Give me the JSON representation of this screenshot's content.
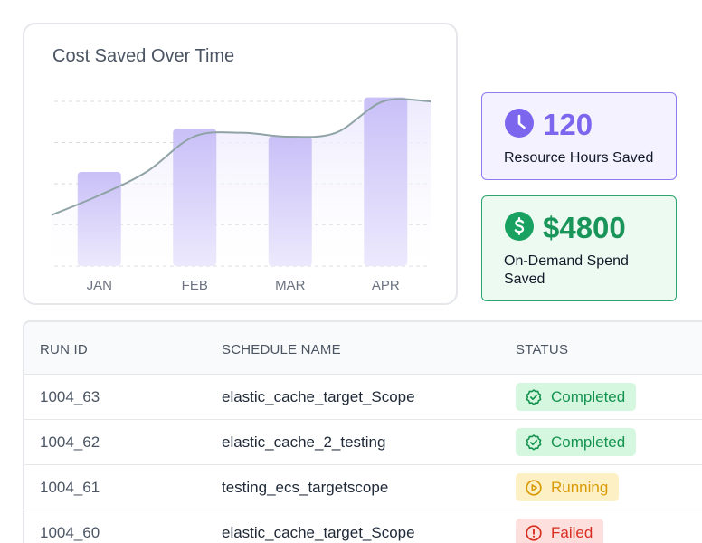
{
  "chart_data": {
    "type": "bar",
    "title": "Cost Saved Over Time",
    "categories": [
      "JAN",
      "FEB",
      "MAR",
      "APR"
    ],
    "values": [
      24,
      35,
      33,
      43
    ],
    "trend": [
      13,
      18,
      24,
      33,
      34,
      33,
      34,
      42,
      42
    ],
    "ylim": [
      0,
      45
    ],
    "grid": true
  },
  "stats": {
    "hours": {
      "value": "120",
      "label": "Resource Hours Saved",
      "icon": "clock-icon",
      "color": "#7c66ee"
    },
    "spend": {
      "value": "$4800",
      "label": "On-Demand Spend Saved",
      "icon": "dollar-icon",
      "color": "#19a161"
    }
  },
  "table": {
    "headers": {
      "run_id": "RUN ID",
      "schedule": "SCHEDULE NAME",
      "status": "STATUS"
    },
    "rows": [
      {
        "run_id": "1004_63",
        "schedule": "elastic_cache_target_Scope",
        "status": "Completed"
      },
      {
        "run_id": "1004_62",
        "schedule": "elastic_cache_2_testing",
        "status": "Completed"
      },
      {
        "run_id": "1004_61",
        "schedule": "testing_ecs_targetscope",
        "status": "Running"
      },
      {
        "run_id": "1004_60",
        "schedule": "elastic_cache_target_Scope",
        "status": "Failed"
      }
    ]
  }
}
